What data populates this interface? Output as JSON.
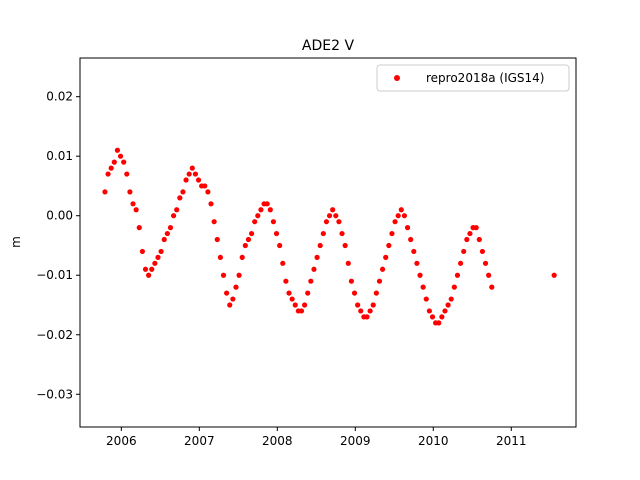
{
  "chart_data": {
    "type": "scatter",
    "title": "ADE2 V",
    "xlabel": "",
    "ylabel": "m",
    "xlim": [
      2005.47,
      2011.83
    ],
    "ylim": [
      -0.0355,
      0.0265
    ],
    "xticks": [
      2006,
      2007,
      2008,
      2009,
      2010,
      2011
    ],
    "xtick_labels": [
      "2006",
      "2007",
      "2008",
      "2009",
      "2010",
      "2011"
    ],
    "yticks": [
      -0.03,
      -0.02,
      -0.01,
      0.0,
      0.01,
      0.02
    ],
    "ytick_labels": [
      "−0.03",
      "−0.02",
      "−0.01",
      "0.00",
      "0.01",
      "0.02"
    ],
    "grid": false,
    "legend_position": "top-right",
    "series": [
      {
        "name": "repro2018a (IGS14)",
        "color": "#ff0000",
        "marker": "circle",
        "x": [
          2005.79,
          2005.83,
          2005.87,
          2005.91,
          2005.95,
          2005.99,
          2006.03,
          2006.07,
          2006.11,
          2006.15,
          2006.19,
          2006.23,
          2006.27,
          2006.31,
          2006.35,
          2006.39,
          2006.43,
          2006.47,
          2006.51,
          2006.55,
          2006.59,
          2006.63,
          2006.67,
          2006.71,
          2006.75,
          2006.79,
          2006.83,
          2006.87,
          2006.91,
          2006.95,
          2006.99,
          2007.03,
          2007.07,
          2007.11,
          2007.15,
          2007.19,
          2007.23,
          2007.27,
          2007.31,
          2007.35,
          2007.39,
          2007.43,
          2007.47,
          2007.51,
          2007.55,
          2007.59,
          2007.63,
          2007.67,
          2007.71,
          2007.75,
          2007.79,
          2007.83,
          2007.87,
          2007.91,
          2007.95,
          2007.99,
          2008.03,
          2008.07,
          2008.11,
          2008.15,
          2008.19,
          2008.23,
          2008.27,
          2008.31,
          2008.35,
          2008.39,
          2008.43,
          2008.47,
          2008.51,
          2008.55,
          2008.59,
          2008.63,
          2008.67,
          2008.71,
          2008.75,
          2008.79,
          2008.83,
          2008.87,
          2008.91,
          2008.95,
          2008.99,
          2009.03,
          2009.07,
          2009.11,
          2009.15,
          2009.19,
          2009.23,
          2009.27,
          2009.31,
          2009.35,
          2009.39,
          2009.43,
          2009.47,
          2009.51,
          2009.55,
          2009.59,
          2009.63,
          2009.67,
          2009.71,
          2009.75,
          2009.79,
          2009.83,
          2009.87,
          2009.91,
          2009.95,
          2009.99,
          2010.03,
          2010.07,
          2010.11,
          2010.15,
          2010.19,
          2010.23,
          2010.27,
          2010.31,
          2010.35,
          2010.39,
          2010.43,
          2010.47,
          2010.51,
          2010.55,
          2010.59,
          2010.63,
          2010.67,
          2010.71,
          2010.75,
          2011.55
        ],
        "y": [
          0.004,
          0.007,
          0.008,
          0.009,
          0.011,
          0.01,
          0.009,
          0.007,
          0.004,
          0.002,
          0.001,
          -0.002,
          -0.006,
          -0.009,
          -0.01,
          -0.009,
          -0.008,
          -0.007,
          -0.006,
          -0.004,
          -0.003,
          -0.002,
          0.0,
          0.001,
          0.003,
          0.004,
          0.006,
          0.007,
          0.008,
          0.007,
          0.006,
          0.005,
          0.005,
          0.004,
          0.002,
          -0.001,
          -0.004,
          -0.007,
          -0.01,
          -0.013,
          -0.015,
          -0.014,
          -0.012,
          -0.01,
          -0.007,
          -0.005,
          -0.004,
          -0.003,
          -0.001,
          0.0,
          0.001,
          0.002,
          0.002,
          0.001,
          -0.001,
          -0.003,
          -0.005,
          -0.008,
          -0.011,
          -0.013,
          -0.014,
          -0.015,
          -0.016,
          -0.016,
          -0.015,
          -0.013,
          -0.011,
          -0.009,
          -0.007,
          -0.005,
          -0.003,
          -0.001,
          0.0,
          0.001,
          0.0,
          -0.001,
          -0.003,
          -0.005,
          -0.008,
          -0.011,
          -0.013,
          -0.015,
          -0.016,
          -0.017,
          -0.017,
          -0.016,
          -0.015,
          -0.013,
          -0.011,
          -0.009,
          -0.007,
          -0.005,
          -0.003,
          -0.001,
          0.0,
          0.001,
          0.0,
          -0.002,
          -0.004,
          -0.006,
          -0.008,
          -0.01,
          -0.012,
          -0.014,
          -0.016,
          -0.017,
          -0.018,
          -0.018,
          -0.017,
          -0.016,
          -0.015,
          -0.014,
          -0.012,
          -0.01,
          -0.008,
          -0.006,
          -0.004,
          -0.003,
          -0.002,
          -0.002,
          -0.004,
          -0.006,
          -0.008,
          -0.01,
          -0.012,
          -0.01
        ]
      }
    ]
  }
}
